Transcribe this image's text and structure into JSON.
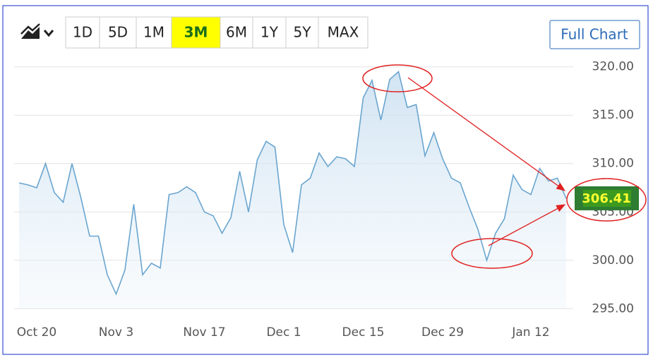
{
  "toolbar": {
    "ranges": [
      "1D",
      "5D",
      "1M",
      "3M",
      "6M",
      "1Y",
      "5Y",
      "MAX"
    ],
    "highlighted_range": "3M",
    "full_chart": "Full Chart"
  },
  "chart_data": {
    "type": "area",
    "color": "#6aa5cf",
    "categories": [
      null,
      null,
      "Oct 20",
      null,
      null,
      null,
      null,
      null,
      null,
      null,
      null,
      "Nov 3",
      null,
      null,
      null,
      null,
      null,
      null,
      null,
      null,
      null,
      "Nov 17",
      null,
      null,
      null,
      null,
      null,
      null,
      null,
      null,
      "Dec 1",
      null,
      null,
      null,
      null,
      null,
      null,
      null,
      null,
      "Dec 15",
      null,
      null,
      null,
      null,
      null,
      null,
      null,
      null,
      "Dec 29",
      null,
      null,
      null,
      null,
      null,
      null,
      null,
      null,
      null,
      "Jan 12",
      null,
      null,
      null,
      null
    ],
    "values": [
      308.0,
      307.8,
      307.5,
      310.0,
      307.0,
      306.0,
      310.0,
      306.5,
      302.5,
      302.5,
      298.5,
      296.5,
      299.0,
      305.8,
      298.5,
      299.7,
      299.2,
      306.8,
      307.0,
      307.6,
      307.0,
      305.0,
      304.6,
      302.8,
      304.4,
      309.2,
      305.0,
      310.4,
      312.3,
      311.7,
      303.7,
      300.8,
      307.8,
      308.5,
      311.1,
      309.7,
      310.7,
      310.5,
      309.7,
      316.8,
      318.6,
      314.5,
      318.7,
      319.5,
      315.8,
      316.1,
      310.8,
      313.2,
      310.5,
      308.5,
      308.0,
      305.5,
      303.2,
      300.0,
      302.8,
      304.3,
      308.8,
      307.3,
      306.8,
      309.5,
      308.2,
      308.5,
      306.4
    ],
    "current_value": 306.41,
    "ylim": [
      294,
      321
    ],
    "yticks": [
      {
        "value": 295,
        "label": "295.00"
      },
      {
        "value": 300,
        "label": "300.00"
      },
      {
        "value": 305,
        "label": "305.00"
      },
      {
        "value": 310,
        "label": "310.00"
      },
      {
        "value": 315,
        "label": "315.00"
      },
      {
        "value": 320,
        "label": "320.00"
      }
    ],
    "grid": true
  }
}
